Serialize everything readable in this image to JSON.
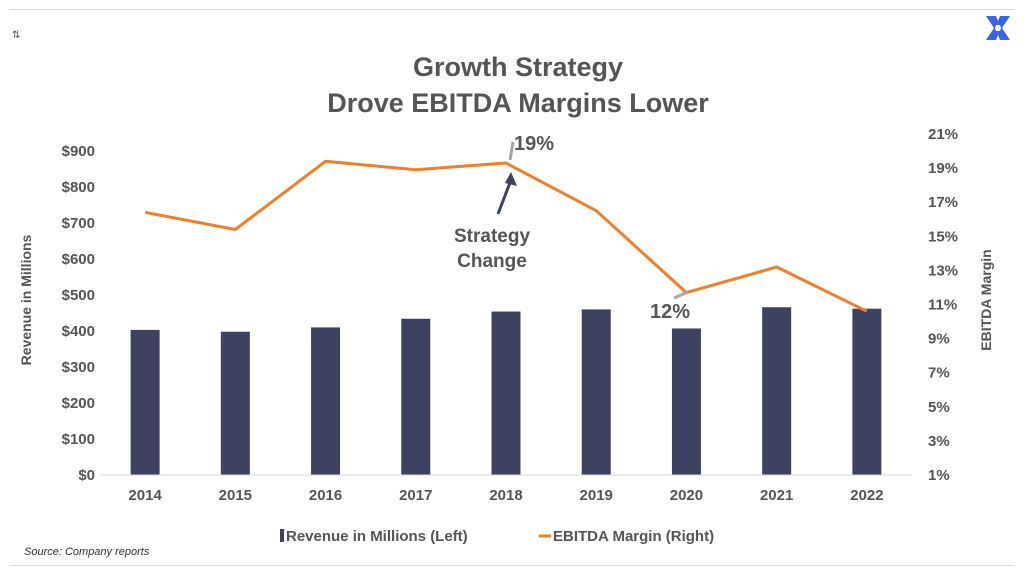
{
  "chart_data": {
    "type": "bar+line",
    "title": [
      "Growth Strategy",
      "Drove EBITDA Margins Lower"
    ],
    "categories": [
      "2014",
      "2015",
      "2016",
      "2017",
      "2018",
      "2019",
      "2020",
      "2021",
      "2022"
    ],
    "series": [
      {
        "name": "Revenue in Millions (Left)",
        "type": "bar",
        "axis": "left",
        "color": "#3d4260",
        "values": [
          403,
          398,
          410,
          434,
          454,
          460,
          407,
          466,
          462
        ]
      },
      {
        "name": "EBITDA Margin (Right)",
        "type": "line",
        "axis": "right",
        "color": "#f07f2a",
        "values": [
          16.4,
          15.4,
          19.4,
          18.9,
          19.3,
          16.5,
          11.7,
          13.2,
          10.6
        ]
      }
    ],
    "ylabel_left": "Revenue in Millions",
    "ylabel_right": "EBITDA Margin",
    "ylim_left": [
      0,
      900
    ],
    "ylim_right": [
      1,
      21
    ],
    "left_ticks": [
      "$0",
      "$100",
      "$200",
      "$300",
      "$400",
      "$500",
      "$600",
      "$700",
      "$800",
      "$900"
    ],
    "right_ticks": [
      "1%",
      "3%",
      "5%",
      "7%",
      "9%",
      "11%",
      "13%",
      "15%",
      "17%",
      "19%",
      "21%"
    ],
    "annotations": {
      "peak_label": "19%",
      "low_label": "12%",
      "callout": [
        "Strategy",
        "Change"
      ]
    },
    "legend_position": "bottom",
    "grid": false
  },
  "source": "Source: Company reports"
}
